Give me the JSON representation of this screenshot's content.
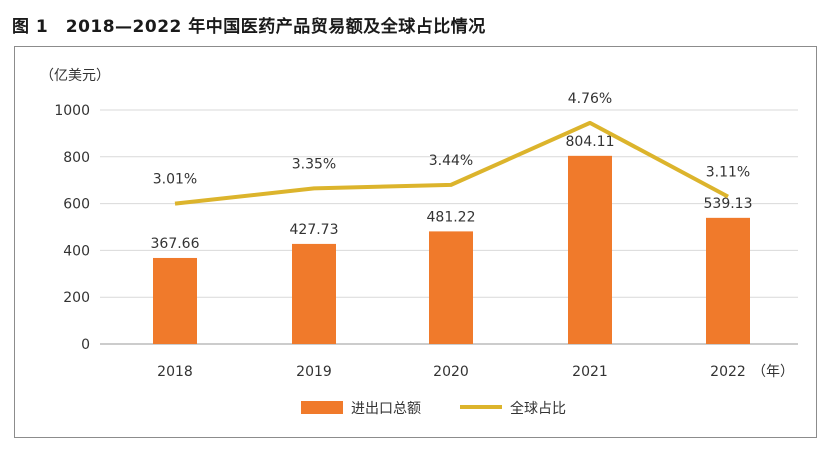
{
  "figure": {
    "title": "图 1　2018—2022 年中国医药产品贸易额及全球占比情况"
  },
  "chart_data": {
    "type": "bar",
    "title": "图 1　2018—2022 年中国医药产品贸易额及全球占比情况",
    "unit_label": "（亿美元）",
    "x_unit_label": "（年）",
    "categories": [
      "2018",
      "2019",
      "2020",
      "2021",
      "2022"
    ],
    "ylim": [
      0,
      1000
    ],
    "yticks": [
      0,
      200,
      400,
      600,
      800,
      1000
    ],
    "grid": true,
    "legend_position": "bottom-center",
    "series": [
      {
        "name": "进出口总额",
        "type": "bar",
        "color": "#f07a2b",
        "values": [
          367.66,
          427.73,
          481.22,
          804.11,
          539.13
        ],
        "labels": [
          "367.66",
          "427.73",
          "481.22",
          "804.11",
          "539.13"
        ]
      },
      {
        "name": "全球占比",
        "type": "line",
        "color": "#dcb42c",
        "values_percent": [
          3.01,
          3.35,
          3.44,
          4.76,
          3.11
        ],
        "labels": [
          "3.01%",
          "3.35%",
          "3.44%",
          "4.76%",
          "3.11%"
        ],
        "plotted_on_left_axis": [
          600,
          665,
          680,
          945,
          630
        ]
      }
    ]
  }
}
